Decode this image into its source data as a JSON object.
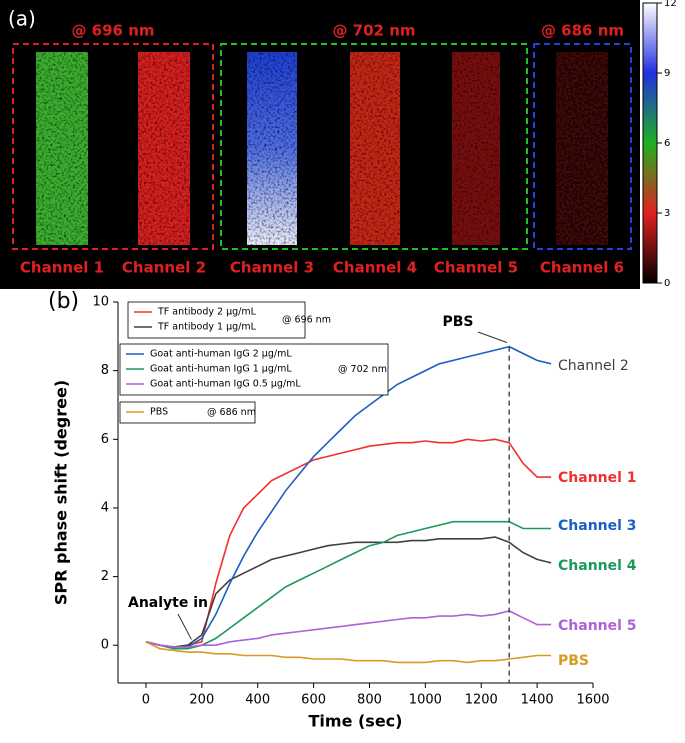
{
  "chart_data": [
    {
      "type": "image",
      "panel_label": "(a)",
      "groups": [
        {
          "label": "@ 696 nm",
          "color": "#e02020",
          "channels": [
            "Channel 1",
            "Channel 2"
          ]
        },
        {
          "label": "@ 702 nm",
          "color": "#20c020",
          "channels": [
            "Channel 3",
            "Channel 4",
            "Channel 5"
          ]
        },
        {
          "label": "@ 686 nm",
          "color": "#2040e0",
          "channels": [
            "Channel 6"
          ]
        }
      ],
      "clim": [
        0,
        12
      ],
      "cticks": [
        0,
        3,
        6,
        9,
        12
      ]
    },
    {
      "type": "line",
      "panel_label": "(b)",
      "xlabel": "Time (sec)",
      "ylabel": "SPR phase shift (degree)",
      "xlim": [
        -100,
        1600
      ],
      "xticks": [
        0,
        200,
        400,
        600,
        800,
        1000,
        1200,
        1400,
        1600
      ],
      "ylim": [
        -1.1,
        10
      ],
      "yticks": [
        0,
        2,
        4,
        6,
        8,
        10
      ],
      "legend_notes": [
        "@ 696 nm",
        "@ 702 nm",
        "@ 686 nm"
      ],
      "x": [
        0,
        50,
        100,
        150,
        200,
        250,
        300,
        350,
        400,
        450,
        500,
        550,
        600,
        650,
        700,
        750,
        800,
        850,
        900,
        950,
        1000,
        1050,
        1100,
        1150,
        1200,
        1250,
        1300,
        1350,
        1400,
        1450
      ],
      "series": [
        {
          "name": "TF antibody 2 μg/mL",
          "end_label": "Channel 1",
          "color": "#f03030",
          "values": [
            0.1,
            0,
            -0.05,
            0,
            0.1,
            1.8,
            3.2,
            4.0,
            4.4,
            4.8,
            5.0,
            5.2,
            5.4,
            5.5,
            5.6,
            5.7,
            5.8,
            5.85,
            5.9,
            5.9,
            5.95,
            5.9,
            5.9,
            6.0,
            5.95,
            6.0,
            5.9,
            5.3,
            4.9,
            4.9
          ]
        },
        {
          "name": "TF antibody 1 μg/mL",
          "end_label": "Channel 2",
          "color": "#404040",
          "values": [
            0.1,
            0,
            -0.05,
            0,
            0.3,
            1.5,
            1.9,
            2.1,
            2.3,
            2.5,
            2.6,
            2.7,
            2.8,
            2.9,
            2.95,
            3.0,
            3.0,
            3.0,
            3.0,
            3.05,
            3.05,
            3.1,
            3.1,
            3.1,
            3.1,
            3.15,
            3.0,
            2.7,
            2.5,
            2.4
          ]
        },
        {
          "name": "Goat anti-human IgG 2 μg/mL",
          "end_label": "Channel 3",
          "color": "#1a5fc8",
          "values": [
            0.1,
            0,
            -0.05,
            -0.05,
            0.2,
            0.9,
            1.8,
            2.6,
            3.3,
            3.9,
            4.5,
            5.0,
            5.5,
            5.9,
            6.3,
            6.7,
            7.0,
            7.3,
            7.6,
            7.8,
            8.0,
            8.2,
            8.3,
            8.4,
            8.5,
            8.6,
            8.7,
            8.5,
            8.3,
            8.2
          ]
        },
        {
          "name": "Goat anti-human IgG 1 μg/mL",
          "end_label": "Channel 4",
          "color": "#1a9a5a",
          "values": [
            0.1,
            0,
            -0.1,
            -0.1,
            0,
            0.2,
            0.5,
            0.8,
            1.1,
            1.4,
            1.7,
            1.9,
            2.1,
            2.3,
            2.5,
            2.7,
            2.9,
            3.0,
            3.2,
            3.3,
            3.4,
            3.5,
            3.6,
            3.6,
            3.6,
            3.6,
            3.6,
            3.4,
            3.4,
            3.4
          ]
        },
        {
          "name": "Goat anti-human IgG 0.5 μg/mL",
          "end_label": "Channel 5",
          "color": "#b060d8",
          "values": [
            0.1,
            0,
            -0.05,
            -0.05,
            0,
            0,
            0.1,
            0.15,
            0.2,
            0.3,
            0.35,
            0.4,
            0.45,
            0.5,
            0.55,
            0.6,
            0.65,
            0.7,
            0.75,
            0.8,
            0.8,
            0.85,
            0.85,
            0.9,
            0.85,
            0.9,
            1.0,
            0.8,
            0.6,
            0.6
          ]
        },
        {
          "name": "PBS",
          "end_label": "PBS",
          "color": "#d89a20",
          "values": [
            0.1,
            -0.1,
            -0.15,
            -0.2,
            -0.2,
            -0.25,
            -0.25,
            -0.3,
            -0.3,
            -0.3,
            -0.35,
            -0.35,
            -0.4,
            -0.4,
            -0.4,
            -0.45,
            -0.45,
            -0.45,
            -0.5,
            -0.5,
            -0.5,
            -0.45,
            -0.45,
            -0.5,
            -0.45,
            -0.45,
            -0.4,
            -0.35,
            -0.3,
            -0.3
          ]
        }
      ],
      "annotations": [
        {
          "text": "PBS",
          "x": 1300,
          "y": 8.7
        },
        {
          "text": "Analyte in",
          "x": 170,
          "y": 0.05
        }
      ]
    }
  ]
}
